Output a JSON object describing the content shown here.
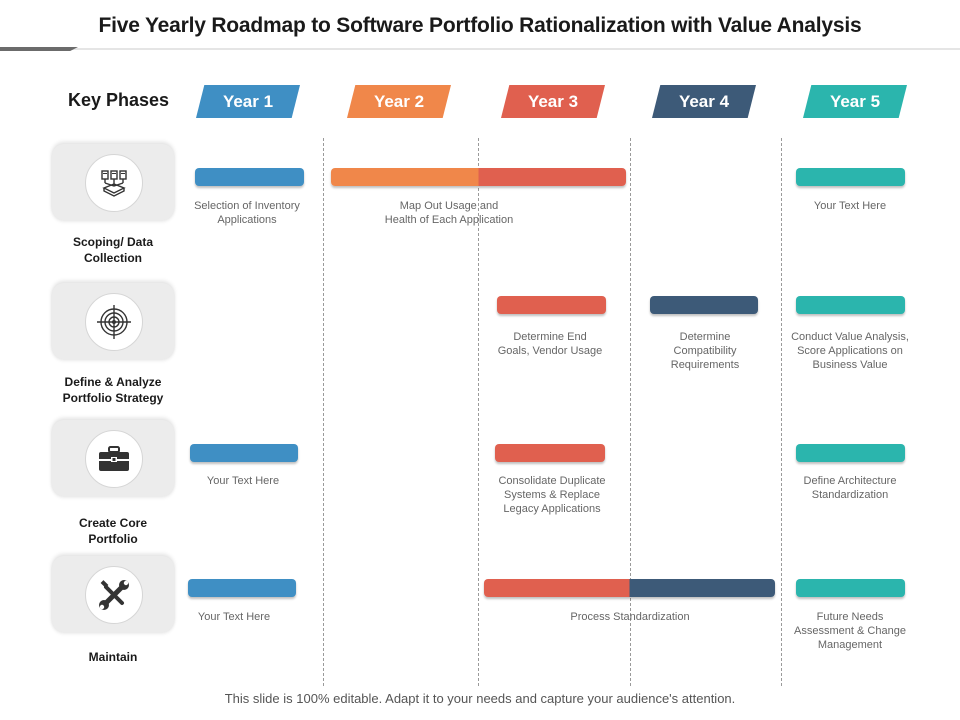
{
  "title": "Five Yearly Roadmap to Software Portfolio Rationalization with Value Analysis",
  "key_phases_label": "Key Phases",
  "years": [
    {
      "label": "Year 1",
      "color": "#3f8fc4"
    },
    {
      "label": "Year 2",
      "color": "#f0874a"
    },
    {
      "label": "Year 3",
      "color": "#e0604f"
    },
    {
      "label": "Year 4",
      "color": "#3d5a78"
    },
    {
      "label": "Year 5",
      "color": "#2bb5ad"
    }
  ],
  "phases": [
    {
      "label_line1": "Scoping/ Data",
      "label_line2": "Collection",
      "icon": "server-network-icon"
    },
    {
      "label_line1": "Define & Analyze",
      "label_line2": "Portfolio Strategy",
      "icon": "target-icon"
    },
    {
      "label_line1": "Create Core",
      "label_line2": "Portfolio",
      "icon": "briefcase-icon"
    },
    {
      "label_line1": "Maintain",
      "label_line2": "",
      "icon": "tools-icon"
    }
  ],
  "tasks": {
    "r1_year1": [
      "Selection of Inventory",
      "Applications"
    ],
    "r1_year2_3": [
      "Map Out Usage and",
      "Health of Each Application"
    ],
    "r1_year5": [
      "Your Text Here"
    ],
    "r2_year3": [
      "Determine End",
      "Goals,  Vendor Usage"
    ],
    "r2_year4": [
      "Determine",
      "Compatibility",
      "Requirements"
    ],
    "r2_year5": [
      "Conduct Value Analysis,",
      "Score Applications  on",
      "Business Value"
    ],
    "r3_year1": [
      "Your Text Here"
    ],
    "r3_year3": [
      "Consolidate  Duplicate",
      "Systems & Replace",
      "Legacy Applications"
    ],
    "r3_year5": [
      "Define Architecture",
      "Standardization"
    ],
    "r4_year1": [
      "Your Text Here"
    ],
    "r4_year3_4": [
      "Process Standardization"
    ],
    "r4_year5": [
      "Future Needs",
      "Assessment & Change",
      "Management"
    ]
  },
  "footer": "This slide is 100% editable. Adapt it to your needs and capture your audience's attention."
}
